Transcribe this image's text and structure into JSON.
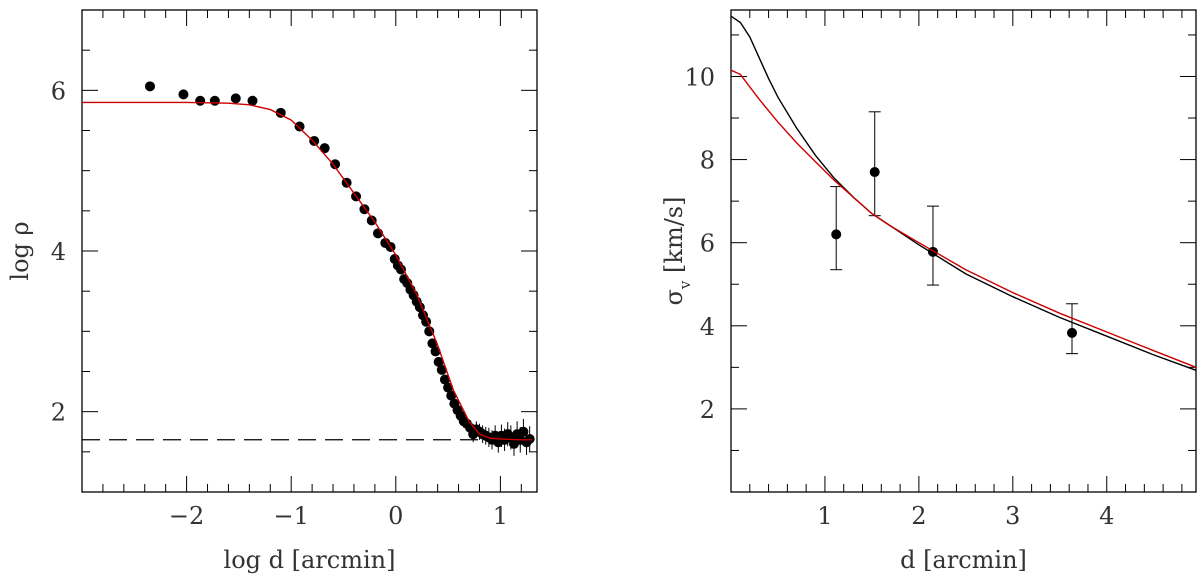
{
  "chart_data": [
    {
      "type": "scatter",
      "panel": "left",
      "xlabel": "log d [arcmin]",
      "ylabel": "log ρ",
      "xlim": [
        -3.0,
        1.35
      ],
      "ylim": [
        1.0,
        7.0
      ],
      "xticks_major": [
        -2,
        -1,
        0,
        1
      ],
      "xtick_labels": [
        "−2",
        "−1",
        "0",
        "1"
      ],
      "yticks_major": [
        2,
        4,
        6
      ],
      "ytick_labels": [
        "2",
        "4",
        "6"
      ],
      "background_level": 1.65,
      "series": [
        {
          "name": "data",
          "style": "points",
          "color": "#000000",
          "x": [
            -2.35,
            -2.03,
            -1.87,
            -1.73,
            -1.53,
            -1.37,
            -1.1,
            -0.92,
            -0.78,
            -0.68,
            -0.58,
            -0.47,
            -0.38,
            -0.3,
            -0.23,
            -0.17,
            -0.1,
            -0.05,
            -0.01,
            0.02,
            0.05,
            0.08,
            0.11,
            0.14,
            0.17,
            0.2,
            0.23,
            0.26,
            0.29,
            0.32,
            0.35,
            0.38,
            0.41,
            0.44,
            0.47,
            0.5,
            0.53,
            0.56,
            0.59,
            0.62,
            0.65,
            0.68,
            0.71,
            0.74,
            0.77,
            0.8,
            0.83,
            0.86,
            0.89,
            0.92,
            0.95,
            0.98,
            1.01,
            1.04,
            1.07,
            1.1,
            1.13,
            1.16,
            1.19,
            1.22,
            1.25,
            1.28
          ],
          "y": [
            6.05,
            5.95,
            5.87,
            5.87,
            5.9,
            5.87,
            5.72,
            5.55,
            5.37,
            5.28,
            5.08,
            4.85,
            4.68,
            4.52,
            4.38,
            4.22,
            4.1,
            4.05,
            3.9,
            3.82,
            3.77,
            3.65,
            3.6,
            3.52,
            3.45,
            3.37,
            3.3,
            3.2,
            3.12,
            3.0,
            2.85,
            2.75,
            2.62,
            2.52,
            2.4,
            2.3,
            2.2,
            2.1,
            2.02,
            1.95,
            1.88,
            1.85,
            1.8,
            1.72,
            1.78,
            1.75,
            1.72,
            1.7,
            1.68,
            1.65,
            1.7,
            1.62,
            1.7,
            1.65,
            1.72,
            1.68,
            1.6,
            1.72,
            1.65,
            1.75,
            1.62,
            1.66
          ],
          "yerr": [
            0.05,
            0.04,
            0.04,
            0.04,
            0.04,
            0.04,
            0.04,
            0.04,
            0.04,
            0.04,
            0.04,
            0.04,
            0.04,
            0.04,
            0.04,
            0.04,
            0.04,
            0.04,
            0.04,
            0.04,
            0.04,
            0.04,
            0.04,
            0.04,
            0.04,
            0.04,
            0.04,
            0.04,
            0.05,
            0.05,
            0.05,
            0.05,
            0.05,
            0.05,
            0.06,
            0.06,
            0.06,
            0.07,
            0.07,
            0.08,
            0.08,
            0.09,
            0.09,
            0.1,
            0.1,
            0.1,
            0.11,
            0.11,
            0.12,
            0.12,
            0.13,
            0.13,
            0.14,
            0.14,
            0.15,
            0.15,
            0.15,
            0.16,
            0.16,
            0.16,
            0.16,
            0.16
          ]
        },
        {
          "name": "model-fit",
          "style": "line",
          "color": "#cc0000",
          "x": [
            -3.0,
            -2.5,
            -2.0,
            -1.6,
            -1.4,
            -1.2,
            -1.0,
            -0.8,
            -0.6,
            -0.4,
            -0.2,
            0.0,
            0.2,
            0.4,
            0.55,
            0.7,
            0.8,
            0.9,
            1.0,
            1.1,
            1.2,
            1.3
          ],
          "y": [
            5.85,
            5.85,
            5.85,
            5.84,
            5.82,
            5.76,
            5.63,
            5.38,
            5.08,
            4.72,
            4.36,
            3.95,
            3.46,
            2.83,
            2.27,
            1.88,
            1.72,
            1.67,
            1.66,
            1.655,
            1.65,
            1.65
          ]
        }
      ]
    },
    {
      "type": "scatter",
      "panel": "right",
      "xlabel": "d [arcmin]",
      "ylabel": "σ",
      "ylabel_subscript": "v",
      "ylabel_units": "[km/s]",
      "xlim": [
        0.0,
        4.95
      ],
      "ylim": [
        0.0,
        11.6
      ],
      "xticks_major": [
        1,
        2,
        3,
        4
      ],
      "xtick_labels": [
        "1",
        "2",
        "3",
        "4"
      ],
      "yticks_major": [
        2,
        4,
        6,
        8,
        10
      ],
      "ytick_labels": [
        "2",
        "4",
        "6",
        "8",
        "10"
      ],
      "series": [
        {
          "name": "data",
          "style": "points",
          "color": "#000000",
          "x": [
            1.12,
            1.53,
            2.15,
            3.63
          ],
          "y": [
            6.2,
            7.7,
            5.78,
            3.83
          ],
          "yerr_low": [
            0.85,
            1.05,
            0.8,
            0.5
          ],
          "yerr_high": [
            1.15,
            1.45,
            1.1,
            0.7
          ]
        },
        {
          "name": "model-black",
          "style": "line",
          "color": "#000000",
          "x": [
            0.0,
            0.1,
            0.2,
            0.3,
            0.4,
            0.5,
            0.7,
            0.9,
            1.1,
            1.3,
            1.5,
            1.7,
            2.0,
            2.5,
            3.0,
            3.5,
            4.0,
            4.5,
            4.95
          ],
          "y": [
            11.45,
            11.3,
            10.95,
            10.45,
            9.95,
            9.5,
            8.75,
            8.1,
            7.55,
            7.1,
            6.7,
            6.4,
            5.95,
            5.25,
            4.7,
            4.2,
            3.75,
            3.3,
            2.93
          ]
        },
        {
          "name": "model-red",
          "style": "line",
          "color": "#cc0000",
          "x": [
            0.0,
            0.1,
            0.2,
            0.3,
            0.5,
            0.7,
            0.9,
            1.1,
            1.3,
            1.5,
            1.7,
            2.0,
            2.5,
            3.0,
            3.5,
            4.0,
            4.5,
            4.95
          ],
          "y": [
            10.15,
            10.05,
            9.75,
            9.45,
            8.9,
            8.4,
            7.95,
            7.5,
            7.1,
            6.7,
            6.4,
            6.0,
            5.35,
            4.8,
            4.3,
            3.85,
            3.4,
            3.0
          ]
        }
      ]
    }
  ]
}
